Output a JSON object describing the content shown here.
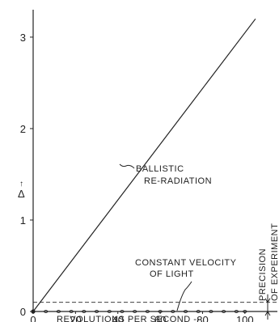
{
  "chart_data": {
    "type": "line",
    "title": "",
    "xlabel": "REVOLUTIONS PER SECOND --",
    "ylabel": "Δ",
    "xlim": [
      0,
      110
    ],
    "ylim": [
      0,
      3.3
    ],
    "x_ticks": [
      0,
      20,
      40,
      60,
      80,
      100
    ],
    "y_ticks": [
      0,
      1,
      2,
      3
    ],
    "series": [
      {
        "name": "BALLISTIC RE-RADIATION",
        "x": [
          0,
          105
        ],
        "y": [
          0,
          3.2
        ]
      },
      {
        "name": "CONSTANT VELOCITY OF LIGHT",
        "x": [
          0,
          6,
          12,
          18,
          24,
          30,
          36,
          42,
          48,
          54,
          60,
          66,
          72,
          78,
          84,
          90,
          96,
          100
        ],
        "y": [
          0,
          0,
          0,
          0,
          0,
          0,
          0,
          0,
          0,
          0,
          0,
          0,
          0,
          0,
          0,
          0,
          0,
          0
        ]
      }
    ],
    "precision_level": 0.1,
    "annotations": {
      "ballistic": [
        "BALLISTIC",
        "RE-RADIATION"
      ],
      "constant": [
        "CONSTANT VELOCITY",
        "OF LIGHT"
      ],
      "precision": [
        "PRECISION",
        "OF EXPERIMENT"
      ]
    }
  }
}
